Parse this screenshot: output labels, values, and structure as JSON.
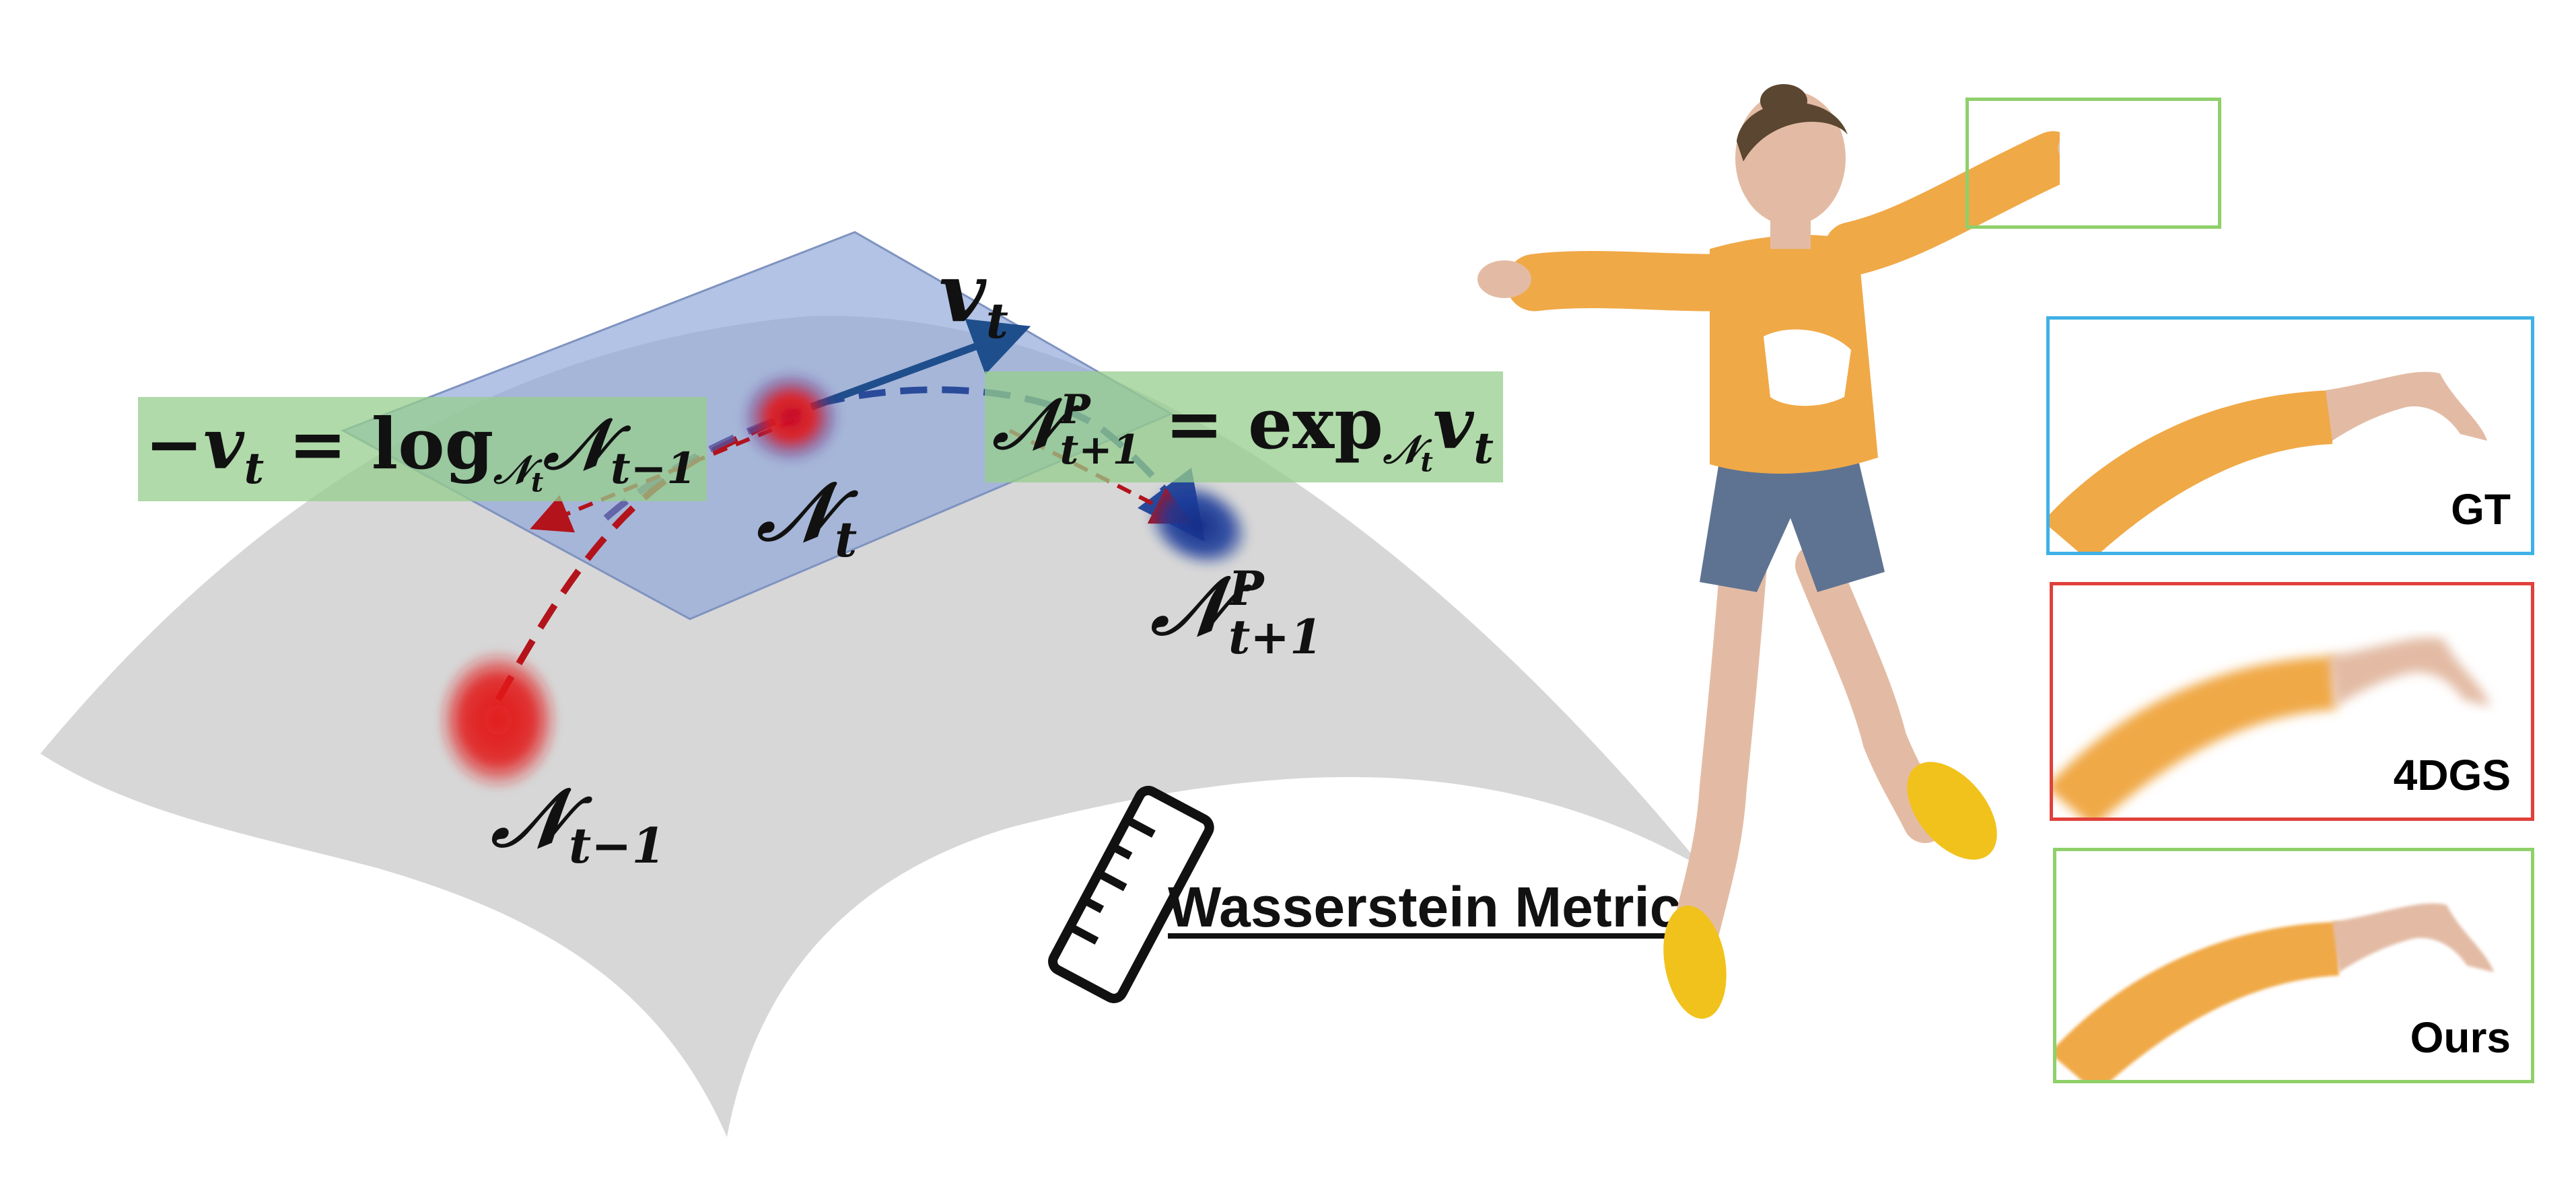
{
  "equations": {
    "log_map": "−v_t = log_{𝒩_t} 𝒩_{t−1}",
    "exp_map": "𝒩^P_{t+1} = exp_{𝒩_t} v_t"
  },
  "labels": {
    "velocity": "v",
    "velocity_sub": "t",
    "n_t": "𝒩",
    "n_t_sub": "t",
    "n_prev": "𝒩",
    "n_prev_sub": "t−1",
    "n_pred": "𝒩",
    "n_pred_sup": "P",
    "n_pred_sub": "t+1",
    "log_lhs": "−v",
    "log_lhs_sub": "t",
    "log_eq": " = log",
    "log_sub": "𝒩",
    "log_sub_sub": "t",
    "log_rhs": "𝒩",
    "log_rhs_sub": "t−1",
    "exp_lhs": "𝒩",
    "exp_lhs_sup": "P",
    "exp_lhs_sub": "t+1",
    "exp_eq": " = exp",
    "exp_sub": "𝒩",
    "exp_sub_sub": "t",
    "exp_rhs": "v",
    "exp_rhs_sub": "t"
  },
  "metric_label": "Wasserstein Metric",
  "panels": [
    {
      "label": "GT",
      "border": "#3fb1e6"
    },
    {
      "label": "4DGS",
      "border": "#e0403a"
    },
    {
      "label": "Ours",
      "border": "#8fd06b"
    }
  ],
  "colors": {
    "manifold": "#d3d3d3",
    "tangent_plane": "#8fa6d9",
    "gaussian_red": "#e21a1a",
    "gaussian_blue": "#1a3a9a",
    "arrow_red": "#b3131b",
    "arrow_blue": "#2a4a9a",
    "equation_bg": "#9fd08f",
    "shirt": "#f0a947",
    "shorts": "#5e7391",
    "shoes": "#f1c21b",
    "skin": "#e3bba4",
    "hair": "#5b4631",
    "crop_box": "#8fd06b"
  }
}
